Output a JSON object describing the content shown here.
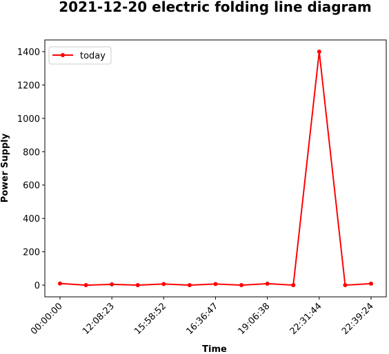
{
  "chart_data": {
    "type": "line",
    "title": "2021-12-20 electric folding line diagram",
    "xlabel": "Time",
    "ylabel": "Power Supply",
    "x_tick_labels": [
      "00:00:00",
      "12:08:23",
      "15:58:52",
      "16:36:47",
      "19:06:38",
      "22:31:44",
      "22:39:24"
    ],
    "ylim": [
      -70,
      1470
    ],
    "yticks": [
      0,
      200,
      400,
      600,
      800,
      1000,
      1200,
      1400
    ],
    "legend_position": "upper-left",
    "grid": false,
    "series": [
      {
        "name": "today",
        "color": "#ff0000",
        "marker": "circle",
        "values": [
          10,
          0,
          5,
          0,
          7,
          0,
          7,
          0,
          9,
          0,
          1400,
          0,
          9
        ]
      }
    ]
  }
}
